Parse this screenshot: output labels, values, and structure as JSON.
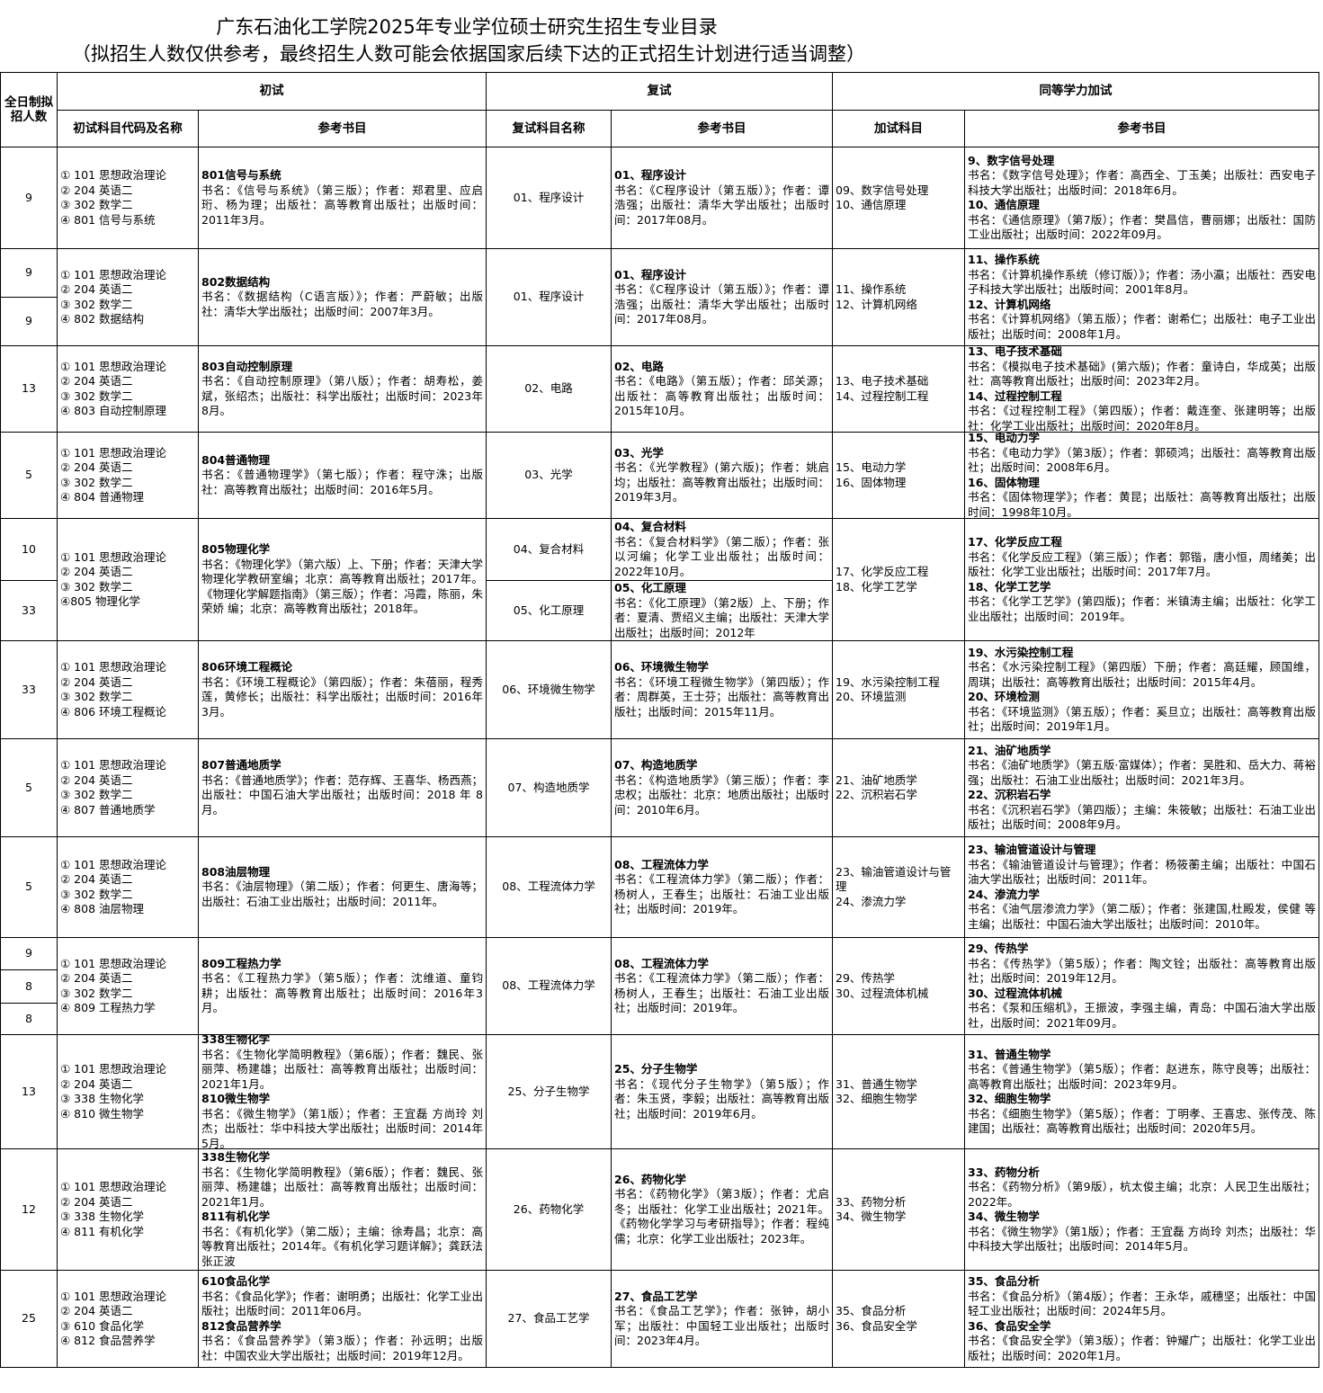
{
  "header": {
    "title": "广东石油化工学院2025年专业学位硕士研究生招生专业目录",
    "subtitle": "（拟招生人数仅供参考，最终招生人数可能会依据国家后续下达的正式招生计划进行适当调整）"
  },
  "table": {
    "group_headers": [
      "全日制拟招人数",
      "初试",
      "复试",
      "同等学力加试"
    ],
    "column_headers": [
      "初试科目代码及名称",
      "参考书目",
      "复试科目名称",
      "参考书目",
      "加试科目",
      "参考书目"
    ],
    "rows": [
      {
        "counts": [
          9
        ],
        "exam": [
          "① 101 思想政治理论",
          "② 204 英语二",
          "③ 302 数学二",
          "④ 801 信号与系统"
        ],
        "books": [
          {
            "title": "801信号与系统",
            "text": "书名：《信号与系统》（第三版）；作者：郑君里、应启珩、杨为理；出版社：高等教育出版社；出版时间：2011年3月。"
          }
        ],
        "retest": [
          {
            "name": "01、程序设计",
            "title": "01、程序设计",
            "text": "书名：《C程序设计（第五版）》；作者：谭浩强；出版社：清华大学出版社；出版时间：2017年08月。"
          }
        ],
        "extra": [
          "09、数字信号处理",
          "10、通信原理"
        ],
        "extra_books": [
          {
            "title": "9、数字信号处理",
            "text": "书名：《数字信号处理》；作者：高西全、丁玉美；出版社：西安电子科技大学出版社；出版时间：2018年6月。"
          },
          {
            "title": "10、通信原理",
            "text": "书名：《通信原理》（第7版）；作者：樊昌信，曹丽娜；出版社：国防工业出版社；出版时间：2022年09月。"
          }
        ]
      },
      {
        "counts": [
          9,
          9
        ],
        "exam": [
          "① 101 思想政治理论",
          "② 204 英语二",
          "③ 302 数学二",
          "④ 802 数据结构"
        ],
        "books": [
          {
            "title": "802数据结构",
            "text": "书名：《数据结构（C语言版）》；作者：严蔚敏；出版社：清华大学出版社；出版时间：2007年3月。"
          }
        ],
        "retest": [
          {
            "name": "01、程序设计",
            "title": "01、程序设计",
            "text": "书名：《C程序设计（第五版）》；作者：谭浩强；出版社：清华大学出版社；出版时间：2017年08月。"
          }
        ],
        "extra": [
          "11、操作系统",
          "12、计算机网络"
        ],
        "extra_books": [
          {
            "title": "11、操作系统",
            "text": "书名：《计算机操作系统（修订版）》；作者：汤小瀛；出版社：西安电子科技大学出版社；出版时间：2001年8月。"
          },
          {
            "title": "12、计算机网络",
            "text": "书名：《计算机网络》（第五版）；作者：谢希仁；出版社：电子工业出版社；出版时间：2008年1月。"
          }
        ]
      },
      {
        "counts": [
          13
        ],
        "exam": [
          "① 101 思想政治理论",
          "② 204 英语二",
          "③ 302 数学二",
          "④ 803 自动控制原理"
        ],
        "books": [
          {
            "title": "803自动控制原理",
            "text": "书名：《自动控制原理》（第八版）；作者：胡寿松，姜斌，张绍杰；出版社：科学出版社；出版时间：2023年8月。"
          }
        ],
        "retest": [
          {
            "name": "02、电路",
            "title": "02、电路",
            "text": "书名：《电路》（第五版）；作者：邱关源；出版社：高等教育出版社；出版时间：2015年10月。"
          }
        ],
        "extra": [
          "13、电子技术基础",
          "14、过程控制工程"
        ],
        "extra_books": [
          {
            "title": "13、电子技术基础",
            "text": "书名：《模拟电子技术基础》(第六版)；作者：童诗白，华成英；出版社：高等教育出版社；出版时间：2023年2月。"
          },
          {
            "title": "14、过程控制工程",
            "text": "书名：《过程控制工程》（第四版）；作者：戴连奎、张建明等；出版社：化学工业出版社；出版时间：2020年8月。"
          }
        ]
      },
      {
        "counts": [
          5
        ],
        "exam": [
          "① 101 思想政治理论",
          "② 204 英语二",
          "③ 302 数学二",
          "④ 804 普通物理"
        ],
        "books": [
          {
            "title": "804普通物理",
            "text": "书名：《普通物理学》（第七版）；作者：程守洙；出版社：高等教育出版社；出版时间：2016年5月。"
          }
        ],
        "retest": [
          {
            "name": "03、光学",
            "title": "03、光学",
            "text": "书名：《光学教程》(第六版)；作者：姚启均；出版社：高等教育出版社；出版时间：2019年3月。"
          }
        ],
        "extra": [
          "15、电动力学",
          "16、固体物理"
        ],
        "extra_books": [
          {
            "title": "15、电动力学",
            "text": "书名：《电动力学》（第3版）；作者：郭硕鸿；出版社：高等教育出版社；出版时间：2008年6月。"
          },
          {
            "title": "16、固体物理",
            "text": "书名：《固体物理学》；作者：黄昆；出版社：高等教育出版社；出版时间：1998年10月。"
          }
        ]
      },
      {
        "counts": [
          10,
          33
        ],
        "exam": [
          "① 101 思想政治理论",
          "② 204 英语二",
          "③ 302 数学二",
          "④805 物理化学"
        ],
        "books": [
          {
            "title": "805物理化学",
            "text": "书名：《物理化学》（第六版）上、下册；作者：天津大学物理化学教研室编；北京：高等教育出版社；2017年。《物理化学解题指南》（第三版）；作者：冯霞，陈丽，朱荣娇 编；北京：高等教育出版社；2018年。"
          }
        ],
        "retest": [
          {
            "name": "04、复合材料",
            "title": "04、复合材料",
            "text": "书名：《复合材料学》（第二版）；作者：张以河编；化学工业出版社；出版时间：2022年10月。"
          },
          {
            "name": "05、化工原理",
            "title": "05、化工原理",
            "text": "书名：《化工原理》（第2版）上、下册；作者：夏清、贾绍义主编；出版社：天津大学出版社；出版时间：2012年"
          }
        ],
        "extra": [
          "17、化学反应工程",
          "18、化学工艺学"
        ],
        "extra_books": [
          {
            "title": "17、化学反应工程",
            "text": "书名：《化学反应工程》（第三版）；作者：郭锴，唐小恒，周绪美；出版社：化学工业出版社；出版时间：2017年7月。"
          },
          {
            "title": "18、化学工艺学",
            "text": "书名：《化学工艺学》(第四版)；作者：米镇涛主编；出版社：化学工业出版社；出版时间：2019年。"
          }
        ]
      },
      {
        "counts": [
          33
        ],
        "exam": [
          "① 101 思想政治理论",
          "② 204 英语二",
          "③ 302 数学二",
          "④ 806 环境工程概论"
        ],
        "books": [
          {
            "title": "806环境工程概论",
            "text": "书名：《环境工程概论》（第四版）；作者：朱蓓丽，程秀莲，黄修长；出版社：科学出版社；出版时间：2016年3月。"
          }
        ],
        "retest": [
          {
            "name": "06、环境微生物学",
            "title": "06、环境微生物学",
            "text": "书名：《环境工程微生物学》（第四版）；作者：周群英，王士芬；出版社：高等教育出版社；出版时间：2015年11月。"
          }
        ],
        "extra": [
          "19、水污染控制工程",
          "20、环境监测"
        ],
        "extra_books": [
          {
            "title": "19、水污染控制工程",
            "text": "书名：《水污染控制工程》（第四版）下册；作者：高廷耀，顾国维，周琪；出版社：高等教育出版社；出版时间：2015年4月。"
          },
          {
            "title": "20、环境检测",
            "text": "书名：《环境监测》（第五版）；作者：奚旦立；出版社：高等教育出版社；出版时间：2019年1月。"
          }
        ]
      },
      {
        "counts": [
          5
        ],
        "exam": [
          "① 101 思想政治理论",
          "② 204 英语二",
          "③ 302 数学二",
          "④ 807 普通地质学"
        ],
        "books": [
          {
            "title": "807普通地质学",
            "text": "书名：《普通地质学》；作者：范存辉、王喜华、杨西燕；出版社：中国石油大学出版社；出版时间：2018 年 8月。"
          }
        ],
        "retest": [
          {
            "name": "07、构造地质学",
            "title": "07、构造地质学",
            "text": "书名：《构造地质学》（第三版）；作者：李忠权；出版社：北京：地质出版社；出版时间：2010年6月。"
          }
        ],
        "extra": [
          "21、油矿地质学",
          "22、沉积岩石学"
        ],
        "extra_books": [
          {
            "title": "21、油矿地质学",
            "text": "书名：《油矿地质学》（第五版·富媒体）；作者：吴胜和、岳大力、蒋裕强；出版社：石油工业出版社；出版时间：2021年3月。"
          },
          {
            "title": "22、沉积岩石学",
            "text": "书名：《沉积岩石学》（第四版）；主编：朱筱敏；出版社：石油工业出版社；出版时间：2008年9月。"
          }
        ]
      },
      {
        "counts": [
          5
        ],
        "exam": [
          "① 101 思想政治理论",
          "② 204 英语二",
          "③ 302 数学二",
          "④ 808 油层物理"
        ],
        "books": [
          {
            "title": "808油层物理",
            "text": "书名：《油层物理》（第二版）；作者：何更生、唐海等；出版社：石油工业出版社；出版时间：2011年。"
          }
        ],
        "retest": [
          {
            "name": "08、工程流体力学",
            "title": "08、工程流体力学",
            "text": "书名：《工程流体力学》（第二版）；作者：杨树人，王春生；出版社：石油工业出版社；出版时间：2019年。"
          }
        ],
        "extra": [
          "23、输油管道设计与管理",
          "24、渗流力学"
        ],
        "extra_books": [
          {
            "title": "23、输油管道设计与管理",
            "text": "书名：《输油管道设计与管理》；作者：杨筱蘅主编；出版社：中国石油大学出版社；出版时间：2011年。"
          },
          {
            "title": "24、渗流力学",
            "text": "书名：《油气层渗流力学》（第二版）；作者：张建国,杜殿发，侯健 等主编；出版社：中国石油大学出版社；出版时间：2010年。"
          }
        ]
      },
      {
        "counts": [
          9,
          8,
          8
        ],
        "exam": [
          "① 101 思想政治理论",
          "② 204 英语二",
          "③ 302 数学二",
          "④ 809 工程热力学"
        ],
        "books": [
          {
            "title": "809工程热力学",
            "text": "书名：《工程热力学》（第5版）；作者：沈维道、童钧耕；出版社：高等教育出版社；出版时间：2016年3月。"
          }
        ],
        "retest": [
          {
            "name": "08、工程流体力学",
            "title": "08、工程流体力学",
            "text": "书名：《工程流体力学》（第二版）；作者：杨树人，王春生；出版社：石油工业出版社；出版时间：2019年。"
          }
        ],
        "extra": [
          "29、传热学",
          "30、过程流体机械"
        ],
        "extra_books": [
          {
            "title": "29、传热学",
            "text": "书名：《传热学》（第5版）；作者：陶文铨；出版社：高等教育出版社；出版时间：2019年12月。"
          },
          {
            "title": "30、过程流体机械",
            "text": "书名：《泵和压缩机》，王振波，李强主编，青岛：中国石油大学出版社，出版时间：2021年09月。"
          }
        ]
      },
      {
        "counts": [
          13
        ],
        "exam": [
          "① 101 思想政治理论",
          "② 204 英语二",
          "③ 338 生物化学",
          "④ 810 微生物学"
        ],
        "books": [
          {
            "title": "338生物化学",
            "text": "书名：《生物化学简明教程》（第6版）；作者：魏民、张丽萍、杨建雄；出版社：高等教育出版社；出版时间：2021年1月。"
          },
          {
            "title": "810微生物学",
            "text": "书名：《微生物学》（第1版）；作者：王宜磊 方尚玲 刘杰；出版社：华中科技大学出版社；出版时间：2014年5月。"
          }
        ],
        "retest": [
          {
            "name": "25、分子生物学",
            "title": "25、分子生物学",
            "text": "书名：《现代分子生物学》（第5版）；作者：朱玉贤，李毅；出版社：高等教育出版社；出版时间：2019年6月。"
          }
        ],
        "extra": [
          "31、普通生物学",
          "32、细胞生物学"
        ],
        "extra_books": [
          {
            "title": "31、普通生物学",
            "text": "书名：《普通生物学》（第5版）；作者：赵进东，陈守良等；出版社：高等教育出版社；出版时间：2023年9月。"
          },
          {
            "title": "32、细胞生物学",
            "text": "书名：《细胞生物学》（第5版）；作者：丁明孝、王喜忠、张传茂、陈建国；出版社：高等教育出版社；出版时间：2020年5月。"
          }
        ]
      },
      {
        "counts": [
          12
        ],
        "exam": [
          "① 101 思想政治理论",
          "② 204 英语二",
          "③ 338 生物化学",
          "④ 811 有机化学"
        ],
        "books": [
          {
            "title": "338生物化学",
            "text": "书名：《生物化学简明教程》（第6版）；作者：魏民、张丽萍、杨建雄；出版社：高等教育出版社；出版时间：2021年1月。"
          },
          {
            "title": "811有机化学",
            "text": "书名：《有机化学》（第二版）；主编：徐寿昌；北京：高等教育出版社；2014年。《有机化学习题详解》；龚跃法 张正波"
          }
        ],
        "retest": [
          {
            "name": "26、药物化学",
            "title": "26、药物化学",
            "text": "书名：《药物化学》（第3版）；作者：尤启冬；出版社：化学工业出版社；2021年。《药物化学学习与考研指导》；作者：程纯儒；北京：化学工业出版社；2023年。"
          }
        ],
        "extra": [
          "33、药物分析",
          "34、微生物学"
        ],
        "extra_books": [
          {
            "title": "33、药物分析",
            "text": "书名：《药物分析》（第9版），杭太俊主编；北京：人民卫生出版社；2022年。"
          },
          {
            "title": "34、微生物学",
            "text": "书名：《微生物学》（第1版）；作者：王宜磊 方尚玲 刘杰；出版社：华中科技大学出版社；出版时间：2014年5月。"
          }
        ]
      },
      {
        "counts": [
          25
        ],
        "exam": [
          "① 101 思想政治理论",
          "② 204 英语二",
          "③ 610 食品化学",
          "④ 812 食品营养学"
        ],
        "books": [
          {
            "title": "610食品化学",
            "text": "书名：《食品化学》；作者：谢明勇；出版社：化学工业出版社；出版时间：2011年06月。"
          },
          {
            "title": "812食品营养学",
            "text": "书名：《食品营养学》（第3版）；作者：孙远明；出版社：中国农业大学出版社；出版时间：2019年12月。"
          }
        ],
        "retest": [
          {
            "name": "27、食品工艺学",
            "title": "27、食品工艺学",
            "text": "书名：《食品工艺学》；作者：张钟，胡小军；出版社：中国轻工业出版社；出版时间：2023年4月。"
          }
        ],
        "extra": [
          "35、食品分析",
          "36、食品安全学"
        ],
        "extra_books": [
          {
            "title": "35、食品分析",
            "text": "书名：《食品分析》（第4版）；作者：王永华，戚穗坚；出版社：中国轻工业出版社；出版时间：2024年5月。"
          },
          {
            "title": "36、食品安全学",
            "text": "书名：《食品安全学》（第3版）；作者：钟耀广；出版社：化学工业出版社；出版时间：2020年1月。"
          }
        ]
      }
    ]
  }
}
